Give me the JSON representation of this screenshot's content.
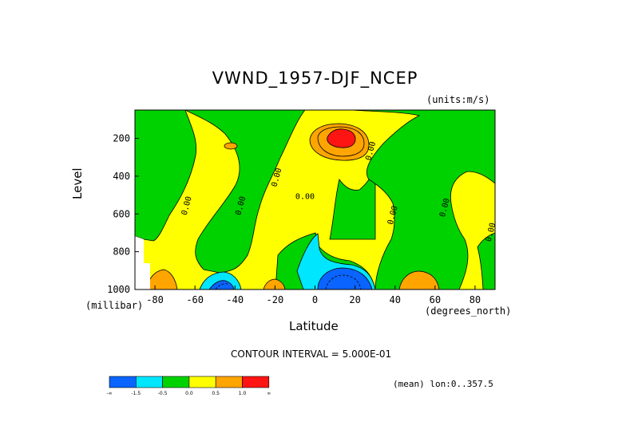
{
  "chart_data": {
    "type": "heatmap",
    "title": "VWND_1957-DJF_NCEP",
    "units_label": "(units:m/s)",
    "xlabel": "Latitude",
    "ylabel": "Level",
    "x_unit": "(degrees_north)",
    "y_unit": "(millibar)",
    "xlim": [
      -90,
      90
    ],
    "ylim": [
      1000,
      50
    ],
    "x_ticks": [
      {
        "value": -80,
        "label": "-80"
      },
      {
        "value": -60,
        "label": "-60"
      },
      {
        "value": -40,
        "label": "-40"
      },
      {
        "value": -20,
        "label": "-20"
      },
      {
        "value": 0,
        "label": "0"
      },
      {
        "value": 20,
        "label": "20"
      },
      {
        "value": 40,
        "label": "40"
      },
      {
        "value": 60,
        "label": "60"
      },
      {
        "value": 80,
        "label": "80"
      }
    ],
    "y_ticks": [
      {
        "value": 200,
        "label": "200"
      },
      {
        "value": 400,
        "label": "400"
      },
      {
        "value": 600,
        "label": "600"
      },
      {
        "value": 800,
        "label": "800"
      },
      {
        "value": 1000,
        "label": "1000"
      }
    ],
    "contour_interval": "CONTOUR INTERVAL = 5.000E-01",
    "footer": "(mean) lon:0..357.5",
    "colorbar": {
      "bins": [
        {
          "color": "#0a64ff"
        },
        {
          "color": "#00e6ff"
        },
        {
          "color": "#00d200"
        },
        {
          "color": "#ffff00"
        },
        {
          "color": "#ffa500"
        },
        {
          "color": "#ff1414"
        }
      ],
      "labels": [
        "-∞",
        "-1.5",
        "-0.5",
        "0.0",
        "0.5",
        "1.0",
        "∞"
      ]
    },
    "contour_labels": [
      {
        "lat": -63,
        "level": 560,
        "text": "0.00"
      },
      {
        "lat": -36,
        "level": 560,
        "text": "0.00"
      },
      {
        "lat": -18,
        "level": 410,
        "text": "0.00"
      },
      {
        "lat": -5,
        "level": 520,
        "text": "0.00"
      },
      {
        "lat": 29,
        "level": 270,
        "text": "0.00"
      },
      {
        "lat": 40,
        "level": 610,
        "text": "0.00"
      },
      {
        "lat": 66,
        "level": 570,
        "text": "0.00"
      },
      {
        "lat": 89,
        "level": 700,
        "text": "0.00"
      }
    ],
    "regions": [
      {
        "value": 0.25,
        "desc": "positive background",
        "color": "#ffff00"
      },
      {
        "value": 1.2,
        "desc": "upper tropical jet core ~10N 150mb",
        "color": "#ff1414"
      },
      {
        "value": -1.7,
        "desc": "near-surface minimum ~10N",
        "color": "#0a64ff"
      },
      {
        "value": -1.0,
        "desc": "near-surface minimum ~50S",
        "color": "#00e6ff"
      }
    ]
  }
}
